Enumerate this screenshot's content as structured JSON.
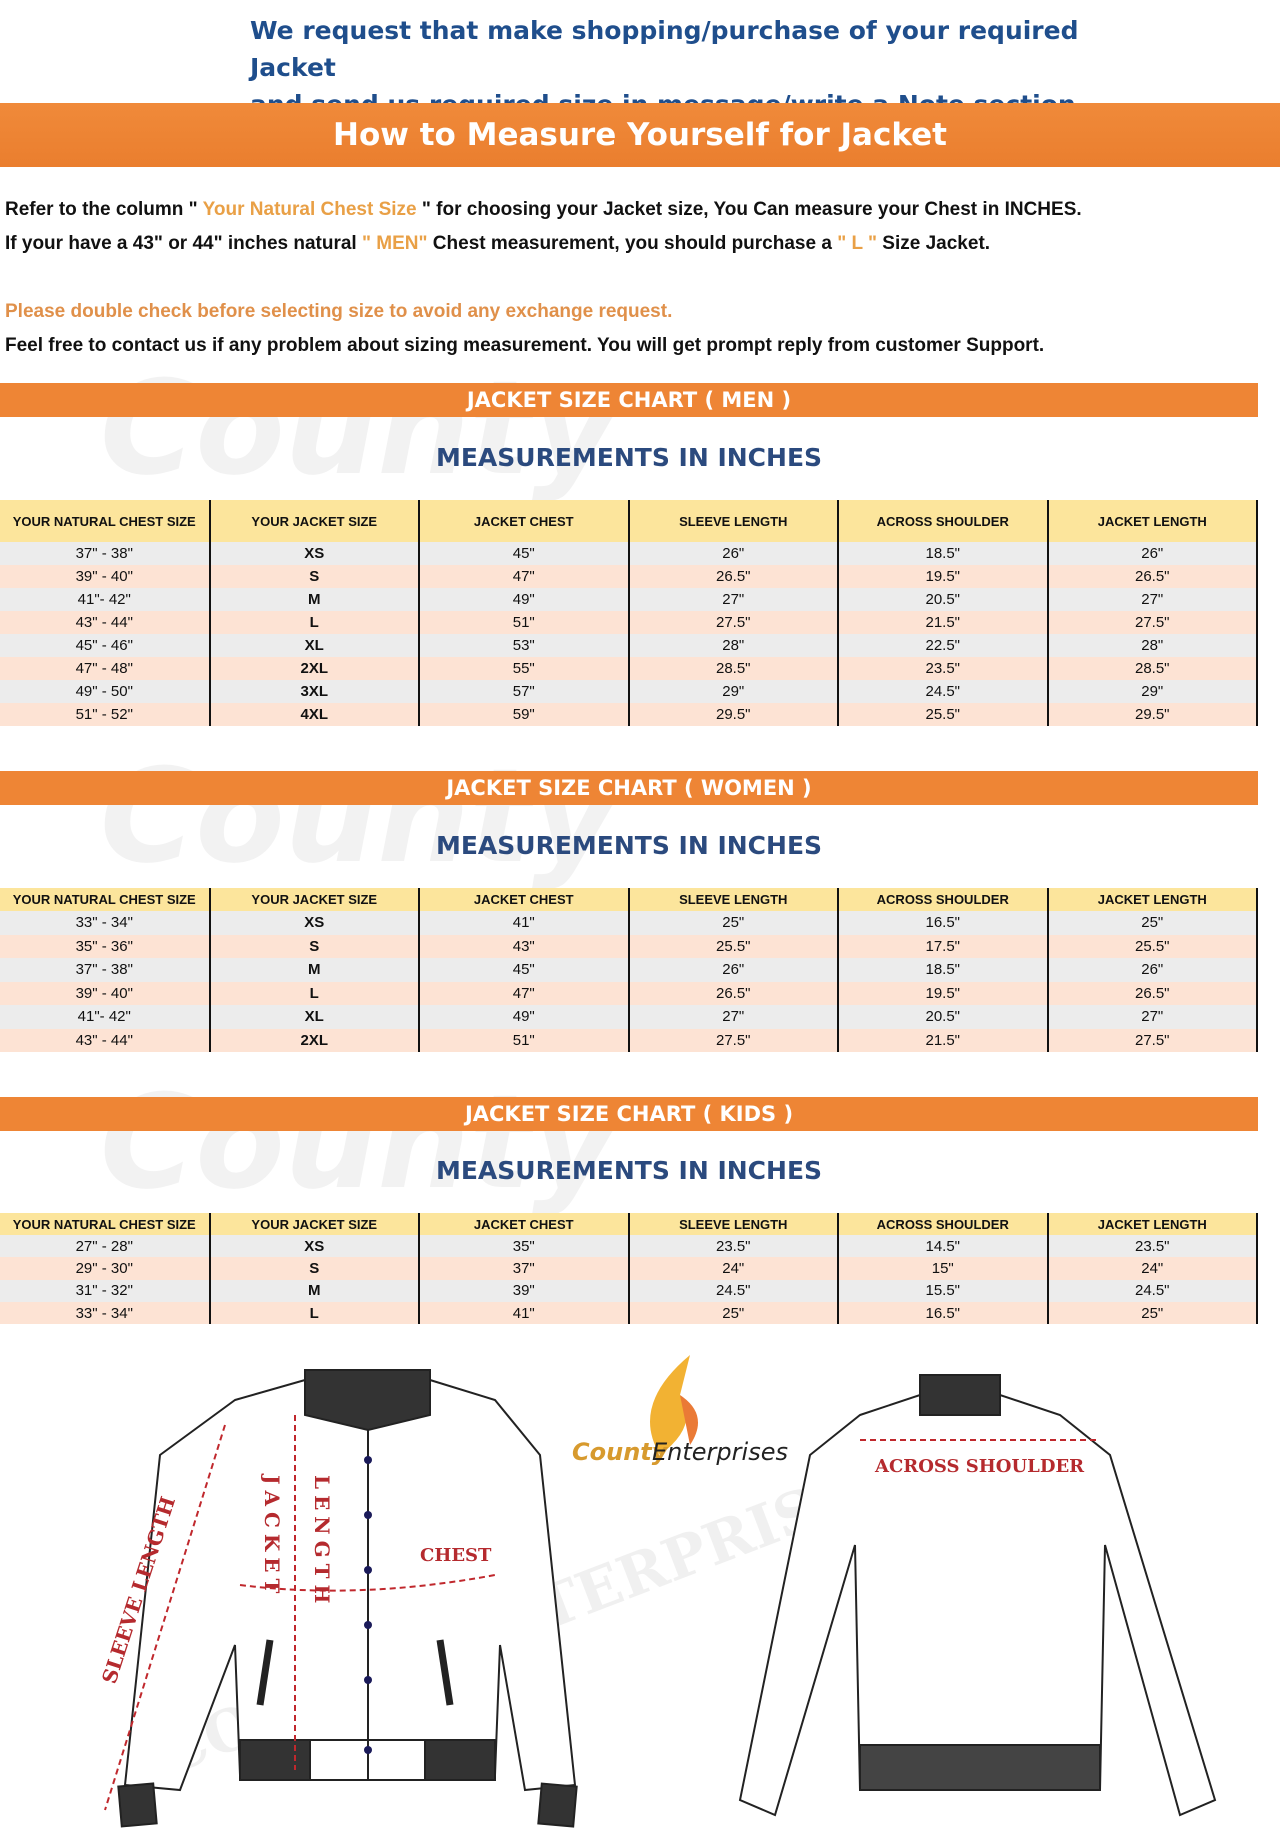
{
  "notice": {
    "line1": "We request that make shopping/purchase of your required Jacket",
    "line2": "and send us required size in message/write a Note section."
  },
  "title": "How to Measure Yourself for Jacket",
  "intro": {
    "l1a": "Refer to the column \"",
    "l1b": " Your Natural Chest Size ",
    "l1c": "\" for choosing your Jacket size, You Can measure your Chest in INCHES.",
    "l2a": "If your have a 43\" or 44\"  inches natural ",
    "l2b": "\" MEN\"",
    "l2c": " Chest measurement, you should purchase a ",
    "l2d": "\" L \"",
    "l2e": " Size Jacket.",
    "warning": "Please double check before selecting size to avoid any exchange request.",
    "contact": "Feel free to contact us if any problem about sizing measurement. You will get prompt reply from customer Support."
  },
  "colors": {
    "accent": "#ee8535",
    "header_row": "#fce59c",
    "row_a": "#ececec",
    "row_b": "#fde3d4",
    "heading_blue": "#2b4a7e",
    "highlight": "#e9a046"
  },
  "watermark": "County",
  "columns": [
    "YOUR NATURAL CHEST SIZE",
    "YOUR JACKET SIZE",
    "JACKET CHEST",
    "SLEEVE LENGTH",
    "ACROSS SHOULDER",
    "JACKET LENGTH"
  ],
  "units_heading": "MEASUREMENTS IN INCHES",
  "charts": [
    {
      "title": "JACKET SIZE CHART ( MEN )",
      "rows": [
        [
          "37\" - 38\"",
          "XS",
          "45\"",
          "26\"",
          "18.5\"",
          "26\""
        ],
        [
          "39\" - 40\"",
          "S",
          "47\"",
          "26.5\"",
          "19.5\"",
          "26.5\""
        ],
        [
          "41\"- 42\"",
          "M",
          "49\"",
          "27\"",
          "20.5\"",
          "27\""
        ],
        [
          "43\" - 44\"",
          "L",
          "51\"",
          "27.5\"",
          "21.5\"",
          "27.5\""
        ],
        [
          "45\" - 46\"",
          "XL",
          "53\"",
          "28\"",
          "22.5\"",
          "28\""
        ],
        [
          "47\" - 48\"",
          "2XL",
          "55\"",
          "28.5\"",
          "23.5\"",
          "28.5\""
        ],
        [
          "49\" - 50\"",
          "3XL",
          "57\"",
          "29\"",
          "24.5\"",
          "29\""
        ],
        [
          "51\" - 52\"",
          "4XL",
          "59\"",
          "29.5\"",
          "25.5\"",
          "29.5\""
        ]
      ]
    },
    {
      "title": "JACKET SIZE CHART ( WOMEN )",
      "rows": [
        [
          "33\" - 34\"",
          "XS",
          "41\"",
          "25\"",
          "16.5\"",
          "25\""
        ],
        [
          "35\" - 36\"",
          "S",
          "43\"",
          "25.5\"",
          "17.5\"",
          "25.5\""
        ],
        [
          "37\" - 38\"",
          "M",
          "45\"",
          "26\"",
          "18.5\"",
          "26\""
        ],
        [
          "39\" - 40\"",
          "L",
          "47\"",
          "26.5\"",
          "19.5\"",
          "26.5\""
        ],
        [
          "41\"- 42\"",
          "XL",
          "49\"",
          "27\"",
          "20.5\"",
          "27\""
        ],
        [
          "43\" - 44\"",
          "2XL",
          "51\"",
          "27.5\"",
          "21.5\"",
          "27.5\""
        ]
      ]
    },
    {
      "title": "JACKET SIZE CHART ( KIDS )",
      "rows": [
        [
          "27\" - 28\"",
          "XS",
          "35\"",
          "23.5\"",
          "14.5\"",
          "23.5\""
        ],
        [
          "29\" - 30\"",
          "S",
          "37\"",
          "24\"",
          "15\"",
          "24\""
        ],
        [
          "31\" - 32\"",
          "M",
          "39\"",
          "24.5\"",
          "15.5\"",
          "24.5\""
        ],
        [
          "33\" - 34\"",
          "L",
          "41\"",
          "25\"",
          "16.5\"",
          "25\""
        ]
      ]
    }
  ],
  "diagram": {
    "sleeve": "SLEEVE LENGTH",
    "jacket": "JACKET",
    "length": "LENGTH",
    "chest": "CHEST",
    "shoulder": "ACROSS SHOULDER",
    "brand_a": "County",
    "brand_b": " Enterprises",
    "watermark": "COUNTY ENTERPRISES"
  }
}
